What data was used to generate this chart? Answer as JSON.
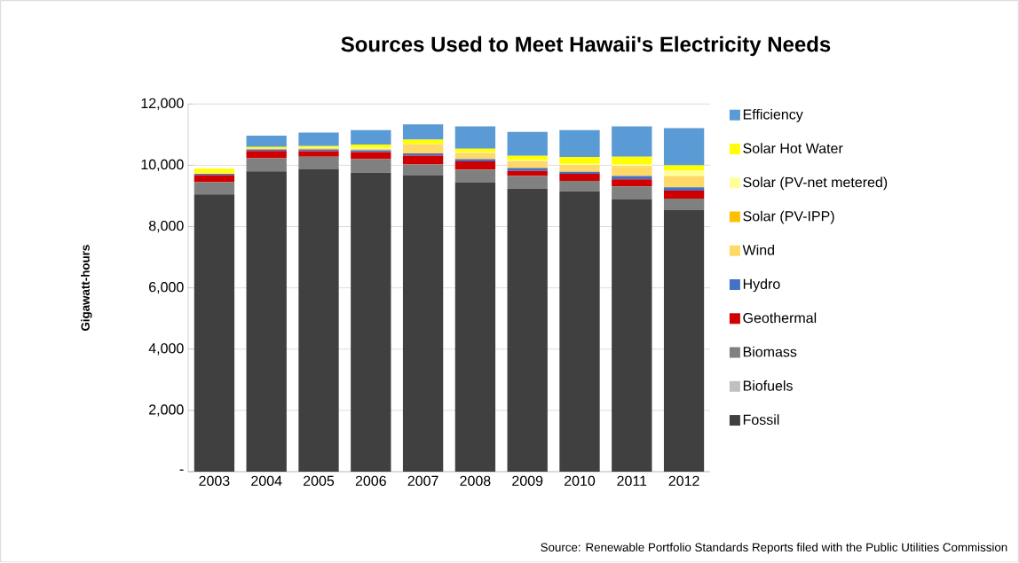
{
  "chart_data": {
    "type": "bar",
    "title": "Sources Used to Meet Hawaii's Electricity Needs",
    "ylabel": "Gigawatt-hours",
    "stacked": true,
    "grid": "y",
    "legend": "right",
    "categories": [
      "2003",
      "2004",
      "2005",
      "2006",
      "2007",
      "2008",
      "2009",
      "2010",
      "2011",
      "2012"
    ],
    "ylim": [
      0,
      12000
    ],
    "yticks": [
      {
        "value": 0,
        "label": "-"
      },
      {
        "value": 2000,
        "label": "2,000"
      },
      {
        "value": 4000,
        "label": "4,000"
      },
      {
        "value": 6000,
        "label": "6,000"
      },
      {
        "value": 8000,
        "label": "8,000"
      },
      {
        "value": 10000,
        "label": "10,000"
      },
      {
        "value": 12000,
        "label": "12,000"
      }
    ],
    "series": [
      {
        "name": "Fossil",
        "color": "#404040",
        "values": [
          9050,
          9800,
          9870,
          9760,
          9680,
          9450,
          9240,
          9150,
          8900,
          8540
        ]
      },
      {
        "name": "Biofuels",
        "color": "#c0c0c0",
        "values": [
          0,
          0,
          0,
          0,
          0,
          0,
          0,
          0,
          0,
          0
        ]
      },
      {
        "name": "Biomass",
        "color": "#808080",
        "values": [
          400,
          430,
          410,
          440,
          350,
          410,
          410,
          340,
          410,
          370
        ]
      },
      {
        "name": "Geothermal",
        "color": "#d00000",
        "values": [
          230,
          240,
          180,
          230,
          290,
          270,
          170,
          230,
          230,
          260
        ]
      },
      {
        "name": "Hydro",
        "color": "#4472c4",
        "values": [
          40,
          50,
          60,
          60,
          70,
          70,
          90,
          70,
          110,
          110
        ]
      },
      {
        "name": "Wind",
        "color": "#ffd966",
        "values": [
          0,
          30,
          40,
          50,
          300,
          200,
          230,
          220,
          300,
          370
        ]
      },
      {
        "name": "Solar (PV-IPP)",
        "color": "#ffc000",
        "values": [
          0,
          0,
          0,
          0,
          0,
          10,
          0,
          null,
          20,
          null
        ]
      },
      {
        "name": "Solar (PV-net metered)",
        "color": "#ffff99",
        "values": [
          20,
          null,
          20,
          30,
          20,
          20,
          30,
          40,
          60,
          190
        ]
      },
      {
        "name": "Solar Hot Water",
        "color": "#ffff00",
        "values": [
          150,
          50,
          50,
          110,
          130,
          110,
          140,
          220,
          250,
          160
        ]
      },
      {
        "name": "Efficiency",
        "color": "#5b9bd5",
        "values": [
          0,
          370,
          440,
          470,
          500,
          730,
          780,
          880,
          990,
          1210
        ]
      }
    ],
    "annotations": [
      "Source: Renewable Portfolio Standards Reports filed with the Public Utilities Commission"
    ]
  }
}
